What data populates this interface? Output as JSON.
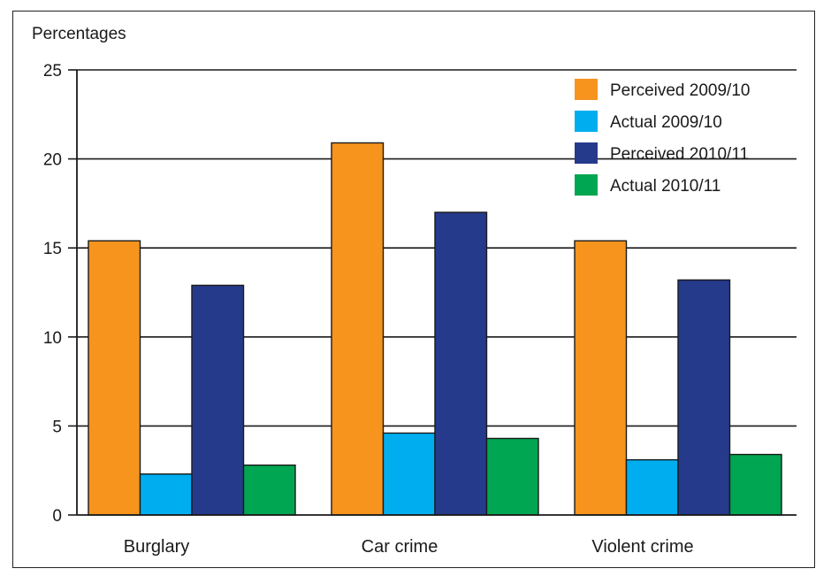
{
  "chart_data": {
    "type": "bar",
    "title": "",
    "ylabel": "Percentages",
    "xlabel": "",
    "ylim": [
      0,
      25
    ],
    "yticks": [
      0,
      5,
      10,
      15,
      20,
      25
    ],
    "grid": true,
    "legend_position": "top-right",
    "categories": [
      "Burglary",
      "Car crime",
      "Violent crime"
    ],
    "series": [
      {
        "name": "Perceived 2009/10",
        "color": "#F7941D",
        "values": [
          15.4,
          20.9,
          15.4
        ]
      },
      {
        "name": "Actual 2009/10",
        "color": "#00AEEF",
        "values": [
          2.3,
          4.6,
          3.1
        ]
      },
      {
        "name": "Perceived 2010/11",
        "color": "#263A8C",
        "values": [
          12.9,
          17.0,
          13.2
        ]
      },
      {
        "name": "Actual 2010/11",
        "color": "#00A651",
        "values": [
          2.8,
          4.3,
          3.4
        ]
      }
    ]
  }
}
